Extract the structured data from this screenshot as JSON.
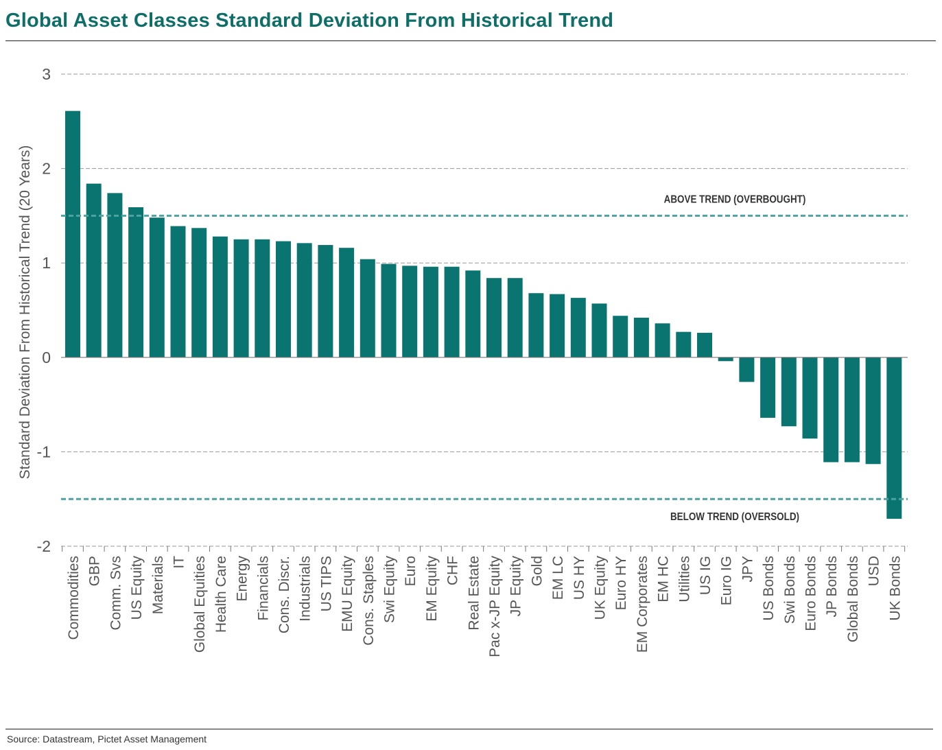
{
  "title": "Global Asset Classes Standard Deviation From Historical Trend",
  "source": "Source: Datastream, Pictet Asset Management",
  "colors": {
    "bar": "#0a7470",
    "title": "#0e6f69",
    "threshold": "#4ca3a0",
    "grid": "#999999",
    "text": "#555555"
  },
  "chart_data": {
    "type": "bar",
    "ylabel": "Standard Deviation From Historical Trend (20 Years)",
    "xlabel": "",
    "ylim": [
      -2,
      3
    ],
    "yticks": [
      3,
      2,
      1,
      0,
      -1,
      -2
    ],
    "grid": true,
    "categories": [
      "Commodities",
      "GBP",
      "Comm. Svs",
      "US Equity",
      "Materials",
      "IT",
      "Global Equities",
      "Health Care",
      "Energy",
      "Financials",
      "Cons. Discr.",
      "Industrials",
      "US TIPS",
      "EMU Equity",
      "Cons. Staples",
      "Swi Equity",
      "Euro",
      "EM Equity",
      "CHF",
      "Real Estate",
      "Pac x-JP Equity",
      "JP Equity",
      "Gold",
      "EM LC",
      "US HY",
      "UK Equity",
      "Euro HY",
      "EM Corporates",
      "EM HC",
      "Utilities",
      "US IG",
      "Euro IG",
      "JPY",
      "US Bonds",
      "Swi Bonds",
      "Euro Bonds",
      "JP Bonds",
      "Global Bonds",
      "USD",
      "UK Bonds"
    ],
    "values": [
      2.61,
      1.84,
      1.74,
      1.59,
      1.48,
      1.39,
      1.37,
      1.28,
      1.25,
      1.25,
      1.23,
      1.21,
      1.19,
      1.16,
      1.04,
      0.99,
      0.97,
      0.96,
      0.96,
      0.92,
      0.84,
      0.84,
      0.68,
      0.67,
      0.63,
      0.57,
      0.44,
      0.42,
      0.36,
      0.27,
      0.26,
      -0.04,
      -0.26,
      -0.64,
      -0.73,
      -0.86,
      -1.11,
      -1.11,
      -1.13,
      -1.71
    ],
    "thresholds": [
      {
        "value": 1.5,
        "label": "ABOVE TREND (OVERBOUGHT)"
      },
      {
        "value": -1.5,
        "label": "BELOW TREND (OVERSOLD)"
      }
    ]
  }
}
